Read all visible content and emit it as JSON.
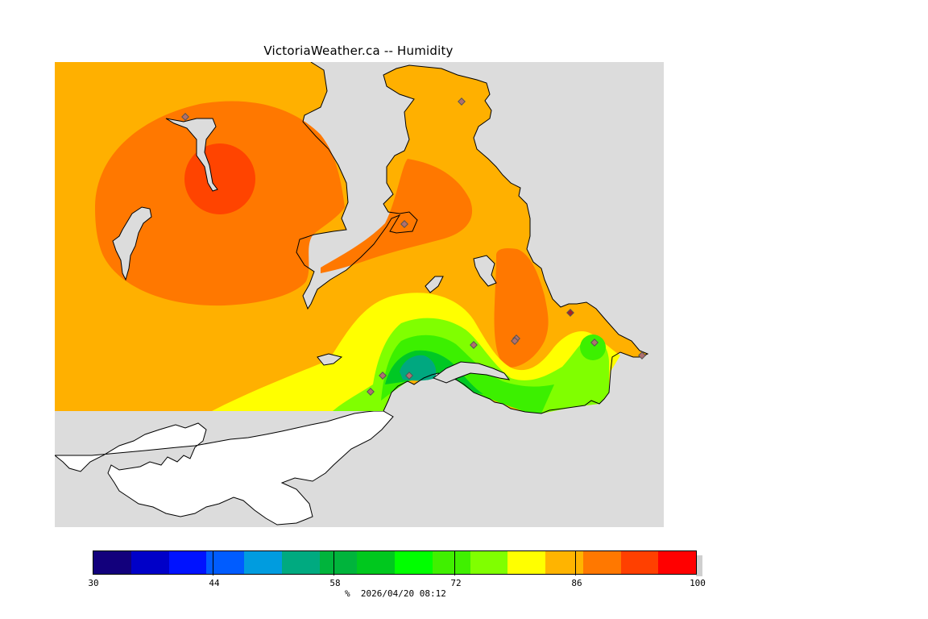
{
  "title": "VictoriaWeather.ca -- Humidity",
  "legend": {
    "ticks": [
      "30",
      "44",
      "58",
      "72",
      "86",
      "100"
    ],
    "colors": [
      "#12007c",
      "#0000c8",
      "#0012ff",
      "#005cff",
      "#009cdf",
      "#00aa80",
      "#00b43c",
      "#00c81e",
      "#00ff00",
      "#40f000",
      "#80ff00",
      "#ffff00",
      "#ffb400",
      "#ff7800",
      "#ff4000",
      "#ff0000"
    ]
  },
  "footer": {
    "unit": "%",
    "timestamp": "2026/04/20 08:12"
  },
  "map": {
    "field_colors": {
      "h82": "#ffb000",
      "h86": "#ff7800",
      "h90": "#ff4400",
      "h78": "#ffff00",
      "h75": "#80ff00",
      "h72": "#3cf000",
      "h65": "#00c824",
      "h60": "#00a880",
      "land_no_data": "#ffffff",
      "water_background": "#dcdcdc"
    },
    "station_count": 12
  }
}
